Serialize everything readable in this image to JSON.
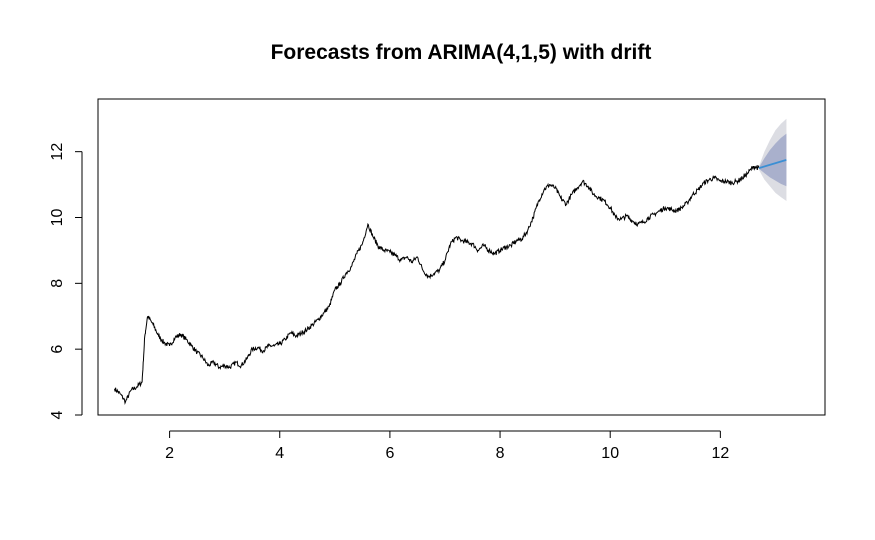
{
  "chart_data": {
    "type": "line",
    "title": "Forecasts from ARIMA(4,1,5) with drift",
    "xlabel": "",
    "ylabel": "",
    "xlim": [
      0.7,
      13.9
    ],
    "ylim": [
      4,
      13.6
    ],
    "x_ticks": [
      2,
      4,
      6,
      8,
      10,
      12
    ],
    "y_ticks": [
      4,
      6,
      8,
      10,
      12
    ],
    "grid": false,
    "legend": "none",
    "series": [
      {
        "role": "observed",
        "color": "#000000",
        "points": [
          [
            1.0,
            4.8
          ],
          [
            1.1,
            4.65
          ],
          [
            1.2,
            4.4
          ],
          [
            1.3,
            4.75
          ],
          [
            1.4,
            4.85
          ],
          [
            1.5,
            5.0
          ],
          [
            1.55,
            6.4
          ],
          [
            1.6,
            7.0
          ],
          [
            1.7,
            6.75
          ],
          [
            1.8,
            6.4
          ],
          [
            1.9,
            6.2
          ],
          [
            2.0,
            6.1
          ],
          [
            2.1,
            6.35
          ],
          [
            2.2,
            6.45
          ],
          [
            2.3,
            6.3
          ],
          [
            2.4,
            6.1
          ],
          [
            2.5,
            5.9
          ],
          [
            2.6,
            5.75
          ],
          [
            2.7,
            5.5
          ],
          [
            2.8,
            5.6
          ],
          [
            2.9,
            5.45
          ],
          [
            3.0,
            5.5
          ],
          [
            3.1,
            5.45
          ],
          [
            3.2,
            5.6
          ],
          [
            3.3,
            5.5
          ],
          [
            3.4,
            5.7
          ],
          [
            3.5,
            6.0
          ],
          [
            3.6,
            6.05
          ],
          [
            3.7,
            5.95
          ],
          [
            3.8,
            6.1
          ],
          [
            3.9,
            6.1
          ],
          [
            4.0,
            6.15
          ],
          [
            4.1,
            6.3
          ],
          [
            4.2,
            6.5
          ],
          [
            4.3,
            6.4
          ],
          [
            4.4,
            6.5
          ],
          [
            4.5,
            6.6
          ],
          [
            4.6,
            6.75
          ],
          [
            4.7,
            6.9
          ],
          [
            4.8,
            7.1
          ],
          [
            4.9,
            7.3
          ],
          [
            5.0,
            7.8
          ],
          [
            5.1,
            8.0
          ],
          [
            5.2,
            8.3
          ],
          [
            5.3,
            8.5
          ],
          [
            5.4,
            8.9
          ],
          [
            5.5,
            9.2
          ],
          [
            5.6,
            9.8
          ],
          [
            5.7,
            9.4
          ],
          [
            5.8,
            9.1
          ],
          [
            5.9,
            9.0
          ],
          [
            6.0,
            8.95
          ],
          [
            6.1,
            8.85
          ],
          [
            6.2,
            8.7
          ],
          [
            6.3,
            8.8
          ],
          [
            6.4,
            8.65
          ],
          [
            6.5,
            8.8
          ],
          [
            6.6,
            8.4
          ],
          [
            6.7,
            8.2
          ],
          [
            6.8,
            8.3
          ],
          [
            6.9,
            8.4
          ],
          [
            7.0,
            8.7
          ],
          [
            7.1,
            9.2
          ],
          [
            7.2,
            9.4
          ],
          [
            7.3,
            9.3
          ],
          [
            7.4,
            9.25
          ],
          [
            7.5,
            9.2
          ],
          [
            7.6,
            9.0
          ],
          [
            7.7,
            9.15
          ],
          [
            7.8,
            9.0
          ],
          [
            7.9,
            8.9
          ],
          [
            8.0,
            9.0
          ],
          [
            8.1,
            9.1
          ],
          [
            8.2,
            9.15
          ],
          [
            8.3,
            9.3
          ],
          [
            8.4,
            9.35
          ],
          [
            8.5,
            9.6
          ],
          [
            8.6,
            10.0
          ],
          [
            8.7,
            10.5
          ],
          [
            8.8,
            10.85
          ],
          [
            8.9,
            11.0
          ],
          [
            9.0,
            10.9
          ],
          [
            9.1,
            10.6
          ],
          [
            9.2,
            10.4
          ],
          [
            9.3,
            10.7
          ],
          [
            9.4,
            10.9
          ],
          [
            9.5,
            11.1
          ],
          [
            9.6,
            10.95
          ],
          [
            9.7,
            10.7
          ],
          [
            9.8,
            10.6
          ],
          [
            9.9,
            10.5
          ],
          [
            10.0,
            10.3
          ],
          [
            10.1,
            10.0
          ],
          [
            10.2,
            9.95
          ],
          [
            10.3,
            10.05
          ],
          [
            10.4,
            9.9
          ],
          [
            10.5,
            9.8
          ],
          [
            10.6,
            9.85
          ],
          [
            10.7,
            10.0
          ],
          [
            10.8,
            10.1
          ],
          [
            10.9,
            10.2
          ],
          [
            11.0,
            10.3
          ],
          [
            11.1,
            10.25
          ],
          [
            11.2,
            10.2
          ],
          [
            11.3,
            10.3
          ],
          [
            11.4,
            10.45
          ],
          [
            11.5,
            10.7
          ],
          [
            11.6,
            10.85
          ],
          [
            11.7,
            11.05
          ],
          [
            11.8,
            11.15
          ],
          [
            11.9,
            11.2
          ],
          [
            12.0,
            11.1
          ],
          [
            12.1,
            11.1
          ],
          [
            12.2,
            11.05
          ],
          [
            12.3,
            11.1
          ],
          [
            12.4,
            11.2
          ],
          [
            12.5,
            11.35
          ],
          [
            12.6,
            11.55
          ],
          [
            12.7,
            11.5
          ]
        ]
      },
      {
        "role": "forecast-mean",
        "color": "#3b8fd4",
        "points": [
          [
            12.7,
            11.5
          ],
          [
            13.2,
            11.75
          ]
        ]
      }
    ],
    "intervals": [
      {
        "level": 95,
        "color": "#dcdde3",
        "x": [
          12.7,
          12.8,
          12.9,
          13.0,
          13.1,
          13.2
        ],
        "lower": [
          11.45,
          11.15,
          10.95,
          10.75,
          10.62,
          10.5
        ],
        "upper": [
          11.55,
          12.0,
          12.35,
          12.65,
          12.85,
          13.0
        ]
      },
      {
        "level": 80,
        "color": "#a9b0cc",
        "x": [
          12.7,
          12.8,
          12.9,
          13.0,
          13.1,
          13.2
        ],
        "lower": [
          11.48,
          11.35,
          11.22,
          11.12,
          11.02,
          10.95
        ],
        "upper": [
          11.52,
          11.8,
          12.05,
          12.25,
          12.42,
          12.55
        ]
      }
    ]
  }
}
